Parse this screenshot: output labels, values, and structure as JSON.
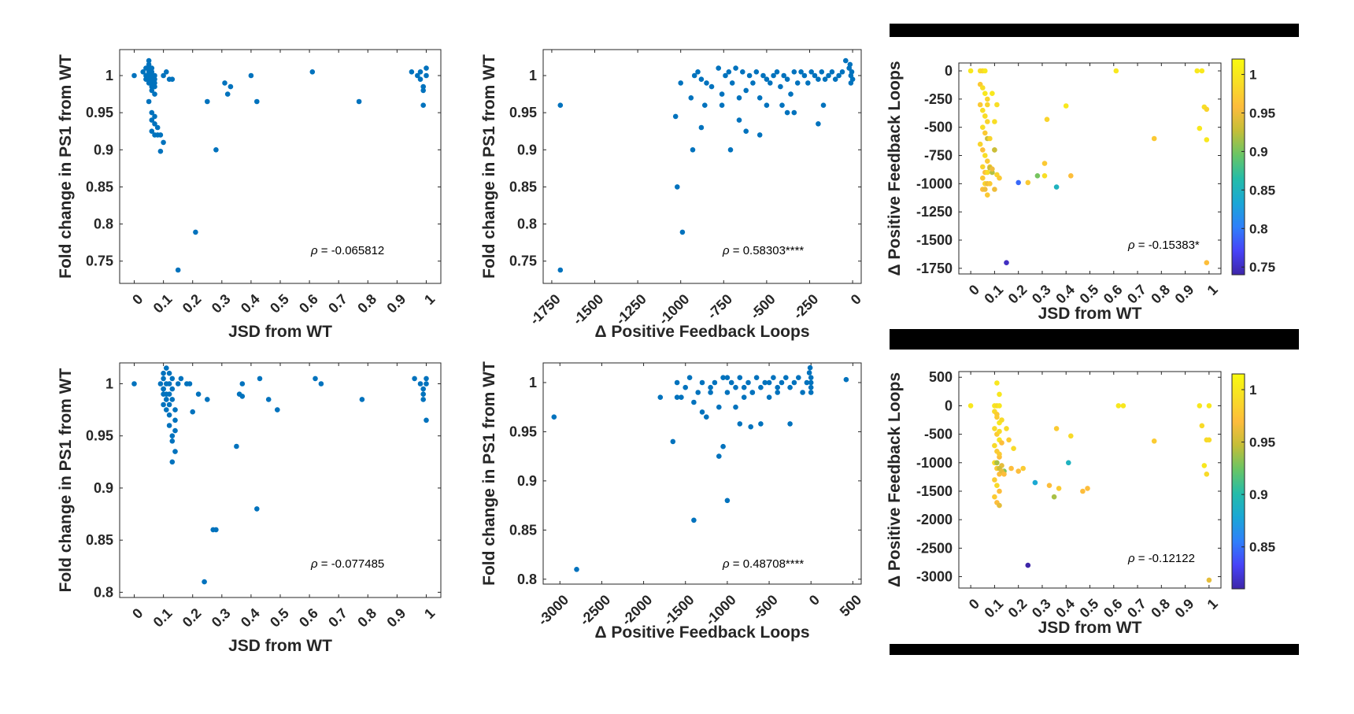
{
  "colors": {
    "marker": "#0072bd",
    "axis": "#262626",
    "colormap": [
      "#3e26a8",
      "#4743f8",
      "#2f80fa",
      "#1aa7d6",
      "#24bca9",
      "#69c565",
      "#c4be38",
      "#fdbc3c",
      "#f8dd26",
      "#f9fb0e"
    ]
  },
  "chart_data": [
    {
      "type": "scatter",
      "xlabel": "JSD from WT",
      "ylabel": "Fold change in PS1 from WT",
      "xlim": [
        -0.05,
        1.05
      ],
      "ylim": [
        0.72,
        1.035
      ],
      "xticks": [
        0,
        0.1,
        0.2,
        0.3,
        0.4,
        0.5,
        0.6,
        0.7,
        0.8,
        0.9,
        1
      ],
      "xticklabels": [
        "0",
        "0.1",
        "0.2",
        "0.3",
        "0.4",
        "0.5",
        "0.6",
        "0.7",
        "0.8",
        "0.9",
        "1"
      ],
      "yticks": [
        0.75,
        0.8,
        0.85,
        0.9,
        0.95,
        1
      ],
      "yticklabels": [
        "0.75",
        "0.8",
        "0.85",
        "0.9",
        "0.95",
        "1"
      ],
      "annotation": {
        "greek": "ρ",
        "text": " = -0.065812"
      },
      "x": [
        0.0,
        0.03,
        0.04,
        0.04,
        0.04,
        0.05,
        0.05,
        0.05,
        0.05,
        0.05,
        0.05,
        0.05,
        0.06,
        0.06,
        0.06,
        0.06,
        0.06,
        0.06,
        0.06,
        0.07,
        0.07,
        0.07,
        0.07,
        0.07,
        0.05,
        0.06,
        0.07,
        0.06,
        0.07,
        0.08,
        0.06,
        0.07,
        0.08,
        0.09,
        0.09,
        0.1,
        0.1,
        0.11,
        0.12,
        0.13,
        0.15,
        0.21,
        0.25,
        0.28,
        0.31,
        0.32,
        0.33,
        0.4,
        0.42,
        0.61,
        0.77,
        0.95,
        0.97,
        0.98,
        0.99,
        1.0,
        0.99,
        1.0,
        0.99,
        0.98
      ],
      "y": [
        1.0,
        1.005,
        1.01,
        1.0,
        0.995,
        1.02,
        1.015,
        1.01,
        1.005,
        1.0,
        0.995,
        0.99,
        1.01,
        1.005,
        1.0,
        0.995,
        0.99,
        0.985,
        0.98,
        1.0,
        0.995,
        0.99,
        0.985,
        0.975,
        0.965,
        0.95,
        0.945,
        0.94,
        0.935,
        0.93,
        0.925,
        0.92,
        0.92,
        0.92,
        0.898,
        0.91,
        1.0,
        1.005,
        0.995,
        0.995,
        0.738,
        0.789,
        0.965,
        0.9,
        0.99,
        0.975,
        0.985,
        1.0,
        0.965,
        1.005,
        0.965,
        1.005,
        1.0,
        1.005,
        0.985,
        1.0,
        0.98,
        1.01,
        0.96,
        0.995
      ]
    },
    {
      "type": "scatter",
      "xlabel": "Δ Positive Feedback Loops",
      "ylabel": "Fold change in PS1 from WT",
      "xlim": [
        -1800,
        50
      ],
      "ylim": [
        0.72,
        1.035
      ],
      "xticks": [
        -1750,
        -1500,
        -1250,
        -1000,
        -750,
        -500,
        -250,
        0
      ],
      "xticklabels": [
        "-1750",
        "-1500",
        "-1250",
        "-1000",
        "-750",
        "-500",
        "-250",
        "0"
      ],
      "yticks": [
        0.75,
        0.8,
        0.85,
        0.9,
        0.95,
        1
      ],
      "yticklabels": [
        "0.75",
        "0.8",
        "0.85",
        "0.9",
        "0.95",
        "1"
      ],
      "annotation": {
        "greek": "ρ",
        "text": " = 0.58303****"
      },
      "x": [
        -1700,
        -1700,
        -1030,
        -1020,
        -990,
        -940,
        -920,
        -900,
        -880,
        -860,
        -850,
        -820,
        -780,
        -760,
        -740,
        -720,
        -700,
        -680,
        -660,
        -640,
        -620,
        -600,
        -580,
        -560,
        -540,
        -520,
        -500,
        -480,
        -460,
        -440,
        -420,
        -400,
        -380,
        -360,
        -340,
        -320,
        -300,
        -280,
        -260,
        -240,
        -220,
        -200,
        -180,
        -160,
        -140,
        -120,
        -100,
        -80,
        -60,
        -40,
        -20,
        -10,
        0,
        -5,
        -10,
        -15,
        -930,
        -880,
        -1000,
        -760,
        -620,
        -540,
        -500,
        -410,
        -380,
        -340,
        -200,
        -170,
        -710,
        -660
      ],
      "y": [
        0.738,
        0.96,
        0.945,
        0.85,
        0.789,
        0.97,
        1.0,
        1.005,
        0.995,
        0.96,
        0.99,
        0.985,
        1.01,
        0.975,
        1.0,
        1.005,
        0.99,
        1.01,
        0.97,
        1.005,
        0.98,
        1.0,
        0.99,
        1.005,
        0.97,
        1.0,
        0.995,
        0.99,
        1.0,
        1.005,
        0.985,
        1.0,
        0.995,
        0.975,
        1.005,
        0.99,
        1.005,
        1.0,
        0.99,
        1.005,
        1.0,
        0.995,
        1.005,
        0.995,
        1.0,
        1.005,
        0.995,
        1.0,
        1.005,
        1.02,
        1.01,
        1.0,
        0.995,
        1.005,
        0.99,
        1.015,
        0.9,
        0.93,
        0.99,
        0.96,
        0.925,
        0.92,
        0.96,
        0.96,
        0.95,
        0.95,
        0.935,
        0.96,
        0.9,
        0.94
      ]
    },
    {
      "type": "scatter",
      "xlabel": "JSD from WT",
      "ylabel": "Δ Positive Feedback Loops",
      "xlim": [
        -0.05,
        1.05
      ],
      "ylim": [
        -1800,
        70
      ],
      "xticks": [
        0,
        0.1,
        0.2,
        0.3,
        0.4,
        0.5,
        0.6,
        0.7,
        0.8,
        0.9,
        1
      ],
      "xticklabels": [
        "0",
        "0.1",
        "0.2",
        "0.3",
        "0.4",
        "0.5",
        "0.6",
        "0.7",
        "0.8",
        "0.9",
        "1"
      ],
      "yticks": [
        0,
        -250,
        -500,
        -750,
        -1000,
        -1250,
        -1500,
        -1750
      ],
      "yticklabels": [
        "0",
        "-250",
        "-500",
        "-750",
        "-1000",
        "-1250",
        "-1500",
        "-1750"
      ],
      "clim": [
        0.74,
        1.02
      ],
      "colorbar_ticks": [
        1,
        0.95,
        0.9,
        0.85,
        0.8,
        0.75
      ],
      "colorbar_ticklabels": [
        "1",
        "0.95",
        "0.9",
        "0.85",
        "0.8",
        "0.75"
      ],
      "annotation": {
        "greek": "ρ",
        "text": " = -0.15383*"
      },
      "x": [
        0.0,
        0.04,
        0.05,
        0.06,
        0.04,
        0.05,
        0.06,
        0.07,
        0.04,
        0.05,
        0.06,
        0.07,
        0.05,
        0.06,
        0.07,
        0.04,
        0.05,
        0.06,
        0.07,
        0.05,
        0.06,
        0.07,
        0.05,
        0.06,
        0.07,
        0.05,
        0.06,
        0.07,
        0.06,
        0.07,
        0.08,
        0.09,
        0.1,
        0.1,
        0.11,
        0.08,
        0.09,
        0.1,
        0.11,
        0.12,
        0.08,
        0.1,
        0.2,
        0.24,
        0.28,
        0.31,
        0.31,
        0.32,
        0.36,
        0.4,
        0.42,
        0.61,
        0.77,
        0.95,
        0.97,
        0.98,
        0.99,
        0.96,
        0.99,
        0.99,
        0.15,
        0.08,
        0.09
      ],
      "y": [
        0,
        0,
        0,
        0,
        -120,
        -150,
        -200,
        -250,
        -300,
        -350,
        -400,
        -450,
        -500,
        -550,
        -600,
        -650,
        -700,
        -750,
        -800,
        -850,
        -900,
        -900,
        -950,
        -1000,
        -1000,
        -1050,
        -1050,
        -1100,
        -400,
        -300,
        -600,
        -200,
        -450,
        -700,
        -300,
        -850,
        -900,
        -700,
        -920,
        -950,
        -1000,
        -1050,
        -990,
        -990,
        -930,
        -820,
        -930,
        -430,
        -1030,
        -310,
        -930,
        0,
        -600,
        0,
        0,
        -320,
        -340,
        -510,
        -610,
        -1700,
        -1700,
        -860,
        -870
      ],
      "c": [
        1.0,
        0.99,
        0.98,
        1.0,
        0.97,
        0.99,
        1.0,
        0.98,
        0.97,
        0.99,
        0.96,
        0.98,
        0.99,
        0.97,
        0.93,
        0.98,
        0.96,
        0.99,
        0.97,
        0.98,
        0.96,
        0.99,
        0.97,
        0.98,
        0.95,
        0.96,
        0.95,
        0.97,
        0.99,
        0.98,
        0.98,
        1.0,
        0.99,
        0.94,
        0.99,
        0.97,
        0.92,
        0.93,
        0.98,
        0.97,
        0.97,
        0.95,
        0.79,
        0.97,
        0.9,
        0.97,
        0.99,
        0.98,
        0.85,
        1.0,
        0.96,
        1.0,
        0.97,
        1.0,
        1.0,
        0.99,
        0.98,
        1.0,
        1.0,
        0.96,
        0.75,
        0.93,
        0.95
      ]
    },
    {
      "type": "scatter",
      "xlabel": "JSD from WT",
      "ylabel": "Fold change in PS1 from WT",
      "xlim": [
        -0.05,
        1.05
      ],
      "ylim": [
        0.795,
        1.02
      ],
      "xticks": [
        0,
        0.1,
        0.2,
        0.3,
        0.4,
        0.5,
        0.6,
        0.7,
        0.8,
        0.9,
        1
      ],
      "xticklabels": [
        "0",
        "0.1",
        "0.2",
        "0.3",
        "0.4",
        "0.5",
        "0.6",
        "0.7",
        "0.8",
        "0.9",
        "1"
      ],
      "yticks": [
        0.8,
        0.85,
        0.9,
        0.95,
        1
      ],
      "yticklabels": [
        "0.8",
        "0.85",
        "0.9",
        "0.95",
        "1"
      ],
      "annotation": {
        "greek": "ρ",
        "text": " = -0.077485"
      },
      "x": [
        0.0,
        0.09,
        0.1,
        0.1,
        0.1,
        0.1,
        0.1,
        0.11,
        0.11,
        0.11,
        0.11,
        0.11,
        0.12,
        0.12,
        0.12,
        0.12,
        0.1,
        0.11,
        0.12,
        0.13,
        0.13,
        0.13,
        0.14,
        0.14,
        0.14,
        0.12,
        0.13,
        0.13,
        0.14,
        0.13,
        0.15,
        0.16,
        0.18,
        0.19,
        0.2,
        0.22,
        0.25,
        0.28,
        0.35,
        0.36,
        0.37,
        0.37,
        0.42,
        0.43,
        0.46,
        0.49,
        0.62,
        0.64,
        0.78,
        0.96,
        0.98,
        0.99,
        1.0,
        0.99,
        1.0,
        1.0,
        0.99,
        0.24,
        0.27
      ],
      "y": [
        1.0,
        1.0,
        1.01,
        1.005,
        0.995,
        0.99,
        0.98,
        1.015,
        1.0,
        0.99,
        0.985,
        0.975,
        1.01,
        1.0,
        0.99,
        0.98,
        0.995,
        0.985,
        0.97,
        1.005,
        0.995,
        0.985,
        0.975,
        0.965,
        0.955,
        0.96,
        0.95,
        0.945,
        0.935,
        0.925,
        1.0,
        1.005,
        1.0,
        1.0,
        0.973,
        0.99,
        0.985,
        0.86,
        0.94,
        0.99,
        1.0,
        0.988,
        0.88,
        1.005,
        0.985,
        0.975,
        1.005,
        1.0,
        0.985,
        1.005,
        1.0,
        0.995,
        1.0,
        0.99,
        0.965,
        1.005,
        0.985,
        0.81,
        0.86
      ]
    },
    {
      "type": "scatter",
      "xlabel": "Δ Positive Feedback Loops",
      "ylabel": "Fold change in PS1 from WT",
      "xlim": [
        -3200,
        600
      ],
      "ylim": [
        0.795,
        1.02
      ],
      "xticks": [
        -3000,
        -2500,
        -2000,
        -1500,
        -1000,
        -500,
        0,
        500
      ],
      "xticklabels": [
        "-3000",
        "-2500",
        "-2000",
        "-1500",
        "-1000",
        "-500",
        "0",
        "500"
      ],
      "yticks": [
        0.8,
        0.85,
        0.9,
        0.95,
        1
      ],
      "yticklabels": [
        "0.8",
        "0.85",
        "0.9",
        "0.95",
        "1"
      ],
      "annotation": {
        "greek": "ρ",
        "text": " = 0.48708****"
      },
      "x": [
        -3070,
        -2800,
        -1800,
        -1650,
        -1600,
        -1550,
        -1500,
        -1450,
        -1400,
        -1350,
        -1300,
        -1250,
        -1200,
        -1150,
        -1100,
        -1050,
        -1000,
        -950,
        -900,
        -850,
        -800,
        -750,
        -700,
        -650,
        -600,
        -550,
        -500,
        -450,
        -400,
        -350,
        -300,
        -250,
        -200,
        -150,
        -100,
        -50,
        -20,
        -10,
        0,
        0,
        0,
        0,
        420,
        -1600,
        -1400,
        -1100,
        -1050,
        -1000,
        -850,
        -720,
        -600,
        -250,
        -1300,
        -1200,
        -500,
        -400,
        -700,
        -900,
        -1000,
        -800
      ],
      "y": [
        0.965,
        0.81,
        0.985,
        0.94,
        1.0,
        0.985,
        0.995,
        1.005,
        0.98,
        0.99,
        1.0,
        0.965,
        0.995,
        1.0,
        0.975,
        1.005,
        0.99,
        1.0,
        0.995,
        1.005,
        0.985,
        1.0,
        0.99,
        1.005,
        0.995,
        1.0,
        0.985,
        1.005,
        0.99,
        1.0,
        1.005,
        0.995,
        1.0,
        1.005,
        0.99,
        1.0,
        1.01,
        1.015,
        0.995,
        1.0,
        1.005,
        0.99,
        1.003,
        0.985,
        0.86,
        0.925,
        0.935,
        0.88,
        0.958,
        0.955,
        0.958,
        0.958,
        0.97,
        0.99,
        1.0,
        0.995,
        0.99,
        0.975,
        1.005,
        0.995
      ]
    },
    {
      "type": "scatter",
      "xlabel": "JSD from WT",
      "ylabel": "Δ Positive Feedback Loops",
      "xlim": [
        -0.05,
        1.05
      ],
      "ylim": [
        -3200,
        600
      ],
      "xticks": [
        0,
        0.1,
        0.2,
        0.3,
        0.4,
        0.5,
        0.6,
        0.7,
        0.8,
        0.9,
        1
      ],
      "xticklabels": [
        "0",
        "0.1",
        "0.2",
        "0.3",
        "0.4",
        "0.5",
        "0.6",
        "0.7",
        "0.8",
        "0.9",
        "1"
      ],
      "yticks": [
        500,
        0,
        -500,
        -1000,
        -1500,
        -2000,
        -2500,
        -3000
      ],
      "yticklabels": [
        "500",
        "0",
        "-500",
        "-1000",
        "-1500",
        "-2000",
        "-2500",
        "-3000"
      ],
      "clim": [
        0.81,
        1.015
      ],
      "colorbar_ticks": [
        1,
        0.95,
        0.9,
        0.85
      ],
      "colorbar_ticklabels": [
        "1",
        "0.95",
        "0.9",
        "0.85"
      ],
      "annotation": {
        "greek": "ρ",
        "text": " = -0.12122"
      },
      "x": [
        0.0,
        0.1,
        0.11,
        0.12,
        0.1,
        0.11,
        0.12,
        0.1,
        0.11,
        0.12,
        0.1,
        0.11,
        0.12,
        0.1,
        0.11,
        0.12,
        0.1,
        0.11,
        0.12,
        0.1,
        0.11,
        0.12,
        0.11,
        0.12,
        0.13,
        0.11,
        0.12,
        0.13,
        0.12,
        0.13,
        0.14,
        0.15,
        0.16,
        0.17,
        0.18,
        0.2,
        0.22,
        0.27,
        0.24,
        0.33,
        0.35,
        0.36,
        0.37,
        0.41,
        0.42,
        0.47,
        0.49,
        0.62,
        0.64,
        0.77,
        0.96,
        0.97,
        0.99,
        1.0,
        1.0,
        0.98,
        1.0,
        0.99,
        0.11,
        0.12,
        0.13,
        0.14
      ],
      "y": [
        0,
        0,
        0,
        0,
        -100,
        -200,
        -300,
        -400,
        -500,
        -600,
        -700,
        -800,
        -900,
        -1000,
        -1100,
        -1200,
        -1300,
        -1400,
        -1500,
        -1600,
        -1700,
        -1750,
        400,
        200,
        -250,
        -150,
        -450,
        -650,
        -850,
        -1050,
        -1150,
        -400,
        -600,
        -1100,
        -750,
        -1150,
        -1100,
        -1350,
        -2800,
        -1400,
        -1600,
        -400,
        -1450,
        -1000,
        -530,
        -1500,
        -1450,
        0,
        0,
        -620,
        0,
        -350,
        -1200,
        0,
        -600,
        -1050,
        -3060,
        -600,
        -1000,
        -1100,
        -1150,
        -1200
      ],
      "c": [
        1.0,
        1.0,
        0.99,
        1.0,
        0.99,
        0.98,
        1.0,
        0.99,
        0.98,
        1.0,
        0.99,
        0.98,
        0.97,
        0.99,
        0.98,
        0.97,
        0.98,
        0.99,
        0.97,
        0.98,
        0.97,
        0.96,
        1.0,
        1.0,
        0.99,
        0.98,
        0.99,
        0.97,
        0.98,
        0.96,
        0.93,
        0.99,
        0.98,
        0.97,
        0.99,
        0.97,
        0.98,
        0.88,
        0.81,
        0.97,
        0.94,
        0.98,
        0.98,
        0.89,
        0.99,
        0.97,
        0.97,
        1.0,
        1.0,
        0.98,
        1.0,
        0.99,
        0.99,
        1.0,
        0.99,
        1.0,
        0.96,
        0.99,
        0.94,
        0.95,
        0.96,
        0.97
      ]
    }
  ]
}
